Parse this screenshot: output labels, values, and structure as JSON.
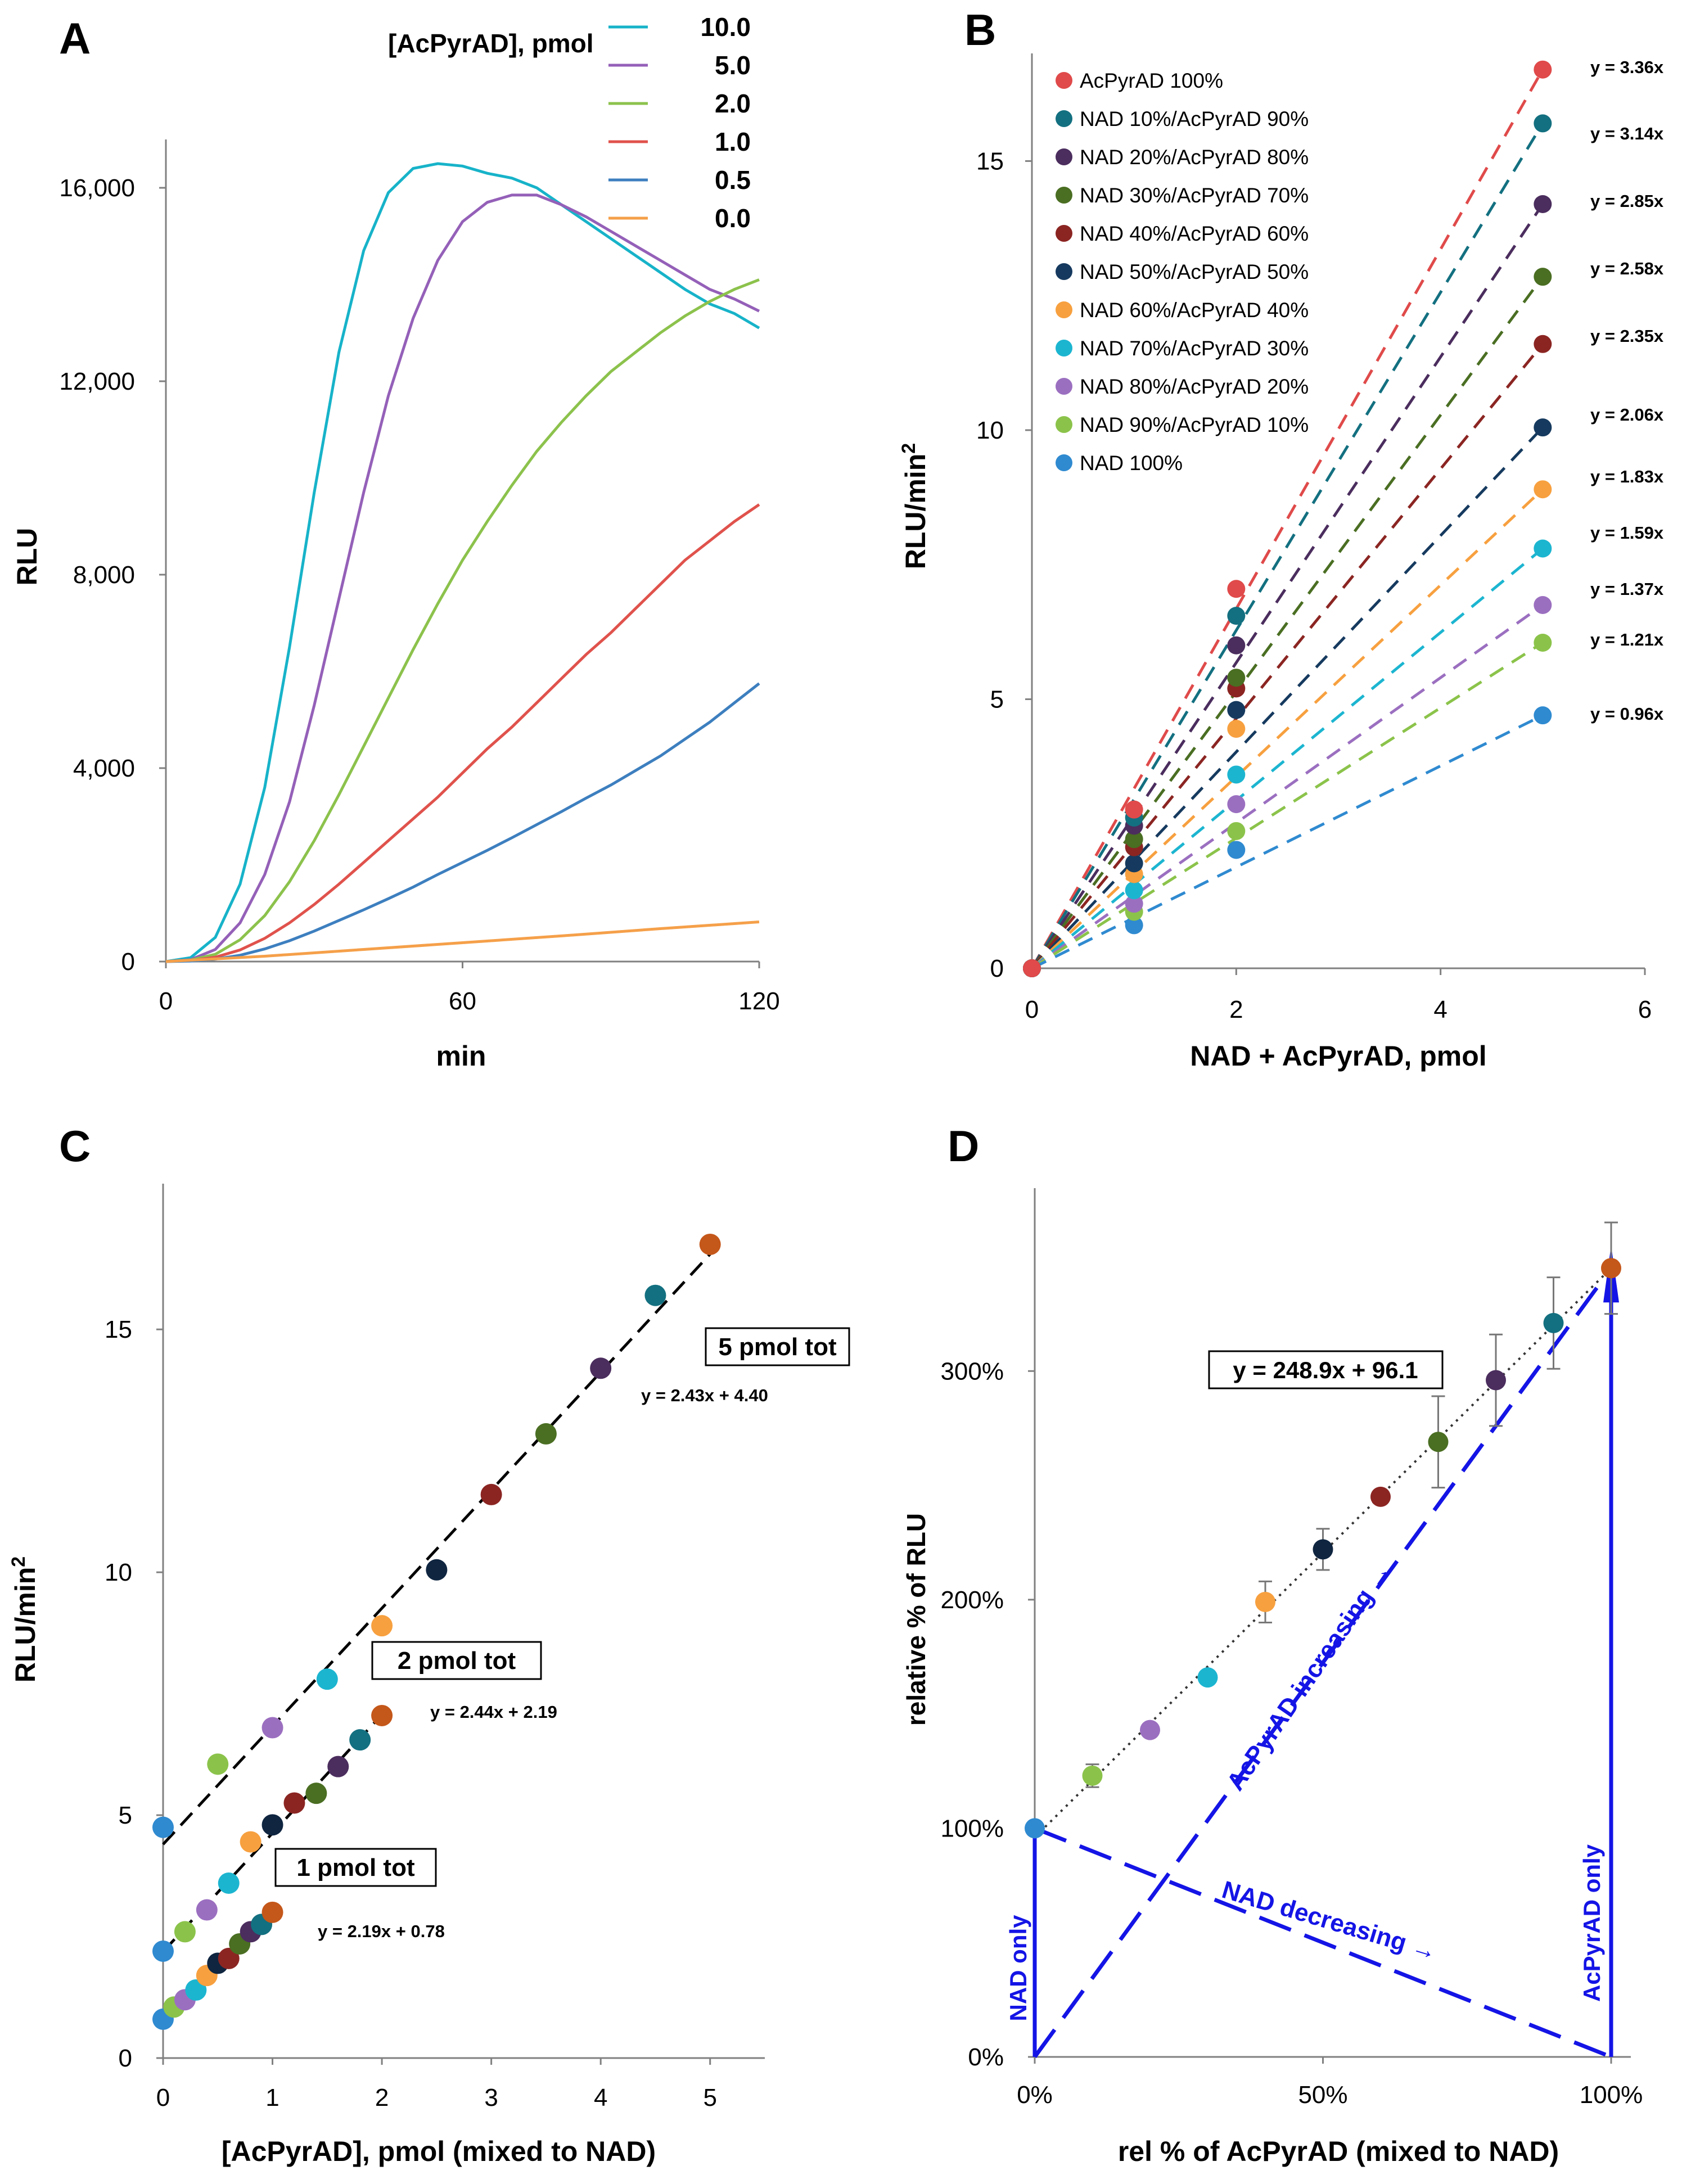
{
  "panels": {
    "A": "A",
    "B": "B",
    "C": "C",
    "D": "D"
  },
  "chart_data": [
    {
      "panel": "A",
      "type": "line",
      "xlabel": "min",
      "ylabel": "RLU",
      "xlim": [
        0,
        120
      ],
      "ylim": [
        0,
        17000
      ],
      "xticks": [
        0,
        60,
        120
      ],
      "xtick_labels": [
        "0",
        "60",
        "120"
      ],
      "yticks": [
        0,
        4000,
        8000,
        12000,
        16000
      ],
      "ytick_labels": [
        "0",
        "4,000",
        "8,000",
        "12,000",
        "16,000"
      ],
      "legend_title": "[AcPyrAD], pmol",
      "legend_position": "top-right",
      "series": [
        {
          "name": "10.0",
          "color": "#17b3c9",
          "x": [
            0,
            5,
            10,
            15,
            20,
            25,
            30,
            35,
            40,
            45,
            50,
            55,
            60,
            65,
            70,
            75,
            80,
            85,
            90,
            95,
            100,
            105,
            110,
            115,
            120
          ],
          "y": [
            0,
            80,
            500,
            1600,
            3600,
            6500,
            9700,
            12600,
            14700,
            15900,
            16400,
            16500,
            16450,
            16300,
            16200,
            16000,
            15650,
            15300,
            14950,
            14600,
            14250,
            13900,
            13600,
            13400,
            13100
          ]
        },
        {
          "name": "5.0",
          "color": "#9460b8",
          "x": [
            0,
            5,
            10,
            15,
            20,
            25,
            30,
            35,
            40,
            45,
            50,
            55,
            60,
            65,
            70,
            75,
            80,
            85,
            90,
            95,
            100,
            105,
            110,
            115,
            120
          ],
          "y": [
            0,
            40,
            250,
            800,
            1800,
            3300,
            5300,
            7500,
            9700,
            11700,
            13300,
            14500,
            15300,
            15700,
            15850,
            15850,
            15650,
            15400,
            15100,
            14800,
            14500,
            14200,
            13900,
            13700,
            13450
          ]
        },
        {
          "name": "2.0",
          "color": "#8cc24c",
          "x": [
            0,
            5,
            10,
            15,
            20,
            25,
            30,
            35,
            40,
            45,
            50,
            55,
            60,
            65,
            70,
            75,
            80,
            85,
            90,
            95,
            100,
            105,
            110,
            115,
            120
          ],
          "y": [
            0,
            30,
            150,
            450,
            950,
            1650,
            2500,
            3450,
            4450,
            5450,
            6450,
            7400,
            8300,
            9100,
            9850,
            10550,
            11150,
            11700,
            12200,
            12600,
            13000,
            13350,
            13650,
            13900,
            14100
          ]
        },
        {
          "name": "1.0",
          "color": "#e0524c",
          "x": [
            0,
            5,
            10,
            15,
            20,
            25,
            30,
            35,
            40,
            45,
            50,
            55,
            60,
            65,
            70,
            75,
            80,
            85,
            90,
            95,
            100,
            105,
            110,
            115,
            120
          ],
          "y": [
            0,
            20,
            90,
            240,
            480,
            800,
            1180,
            1600,
            2050,
            2500,
            2950,
            3400,
            3900,
            4400,
            4850,
            5350,
            5850,
            6350,
            6800,
            7300,
            7800,
            8300,
            8700,
            9100,
            9450
          ]
        },
        {
          "name": "0.5",
          "color": "#3d7fbf",
          "x": [
            0,
            5,
            10,
            15,
            20,
            25,
            30,
            35,
            40,
            45,
            50,
            55,
            60,
            65,
            70,
            75,
            80,
            85,
            90,
            95,
            100,
            105,
            110,
            115,
            120
          ],
          "y": [
            0,
            10,
            50,
            130,
            260,
            430,
            630,
            850,
            1070,
            1300,
            1540,
            1800,
            2050,
            2300,
            2560,
            2830,
            3100,
            3380,
            3650,
            3950,
            4250,
            4600,
            4950,
            5350,
            5750
          ]
        },
        {
          "name": "0.0",
          "color": "#f5a04a",
          "x": [
            0,
            20,
            40,
            60,
            80,
            100,
            120
          ],
          "y": [
            0,
            110,
            250,
            390,
            530,
            680,
            820
          ]
        }
      ]
    },
    {
      "panel": "B",
      "type": "scatter",
      "xlabel": "NAD + AcPyrAD, pmol",
      "ylabel": "RLU/min",
      "ylabel_sup": "2",
      "xlim": [
        0,
        6
      ],
      "ylim": [
        0,
        17
      ],
      "xticks": [
        0,
        2,
        4,
        6
      ],
      "yticks": [
        0,
        5,
        10,
        15
      ],
      "legend_position": "top-left",
      "x": [
        0,
        1,
        2,
        5
      ],
      "series": [
        {
          "name": "AcPyrAD 100%",
          "color": "#e04a4a",
          "slope": 3.36,
          "equation": "y = 3.36x",
          "values": [
            0,
            2.95,
            7.05,
            16.7
          ]
        },
        {
          "name": "NAD 10%/AcPyrAD 90%",
          "color": "#137080",
          "slope": 3.14,
          "equation": "y = 3.14x",
          "values": [
            0,
            2.8,
            6.55,
            15.7
          ]
        },
        {
          "name": "NAD 20%/AcPyrAD 80%",
          "color": "#4b2d5e",
          "slope": 2.85,
          "equation": "y = 2.85x",
          "values": [
            0,
            2.65,
            6.0,
            14.2
          ]
        },
        {
          "name": "NAD 30%/AcPyrAD 70%",
          "color": "#4a6e22",
          "slope": 2.58,
          "equation": "y = 2.58x",
          "values": [
            0,
            2.4,
            5.4,
            12.85
          ]
        },
        {
          "name": "NAD 40%/AcPyrAD 60%",
          "color": "#8b2522",
          "slope": 2.35,
          "equation": "y = 2.35x",
          "values": [
            0,
            2.25,
            5.2,
            11.6
          ]
        },
        {
          "name": "NAD 50%/AcPyrAD 50%",
          "color": "#163a5f",
          "slope": 2.06,
          "equation": "y = 2.06x",
          "values": [
            0,
            1.95,
            4.8,
            10.05
          ]
        },
        {
          "name": "NAD 60%/AcPyrAD 40%",
          "color": "#f7a03f",
          "slope": 1.83,
          "equation": "y = 1.83x",
          "values": [
            0,
            1.75,
            4.45,
            8.9
          ]
        },
        {
          "name": "NAD 70%/AcPyrAD 30%",
          "color": "#1cb5d0",
          "slope": 1.59,
          "equation": "y = 1.59x",
          "values": [
            0,
            1.45,
            3.6,
            7.8
          ]
        },
        {
          "name": "NAD 80%/AcPyrAD 20%",
          "color": "#9b6fc0",
          "slope": 1.37,
          "equation": "y = 1.37x",
          "values": [
            0,
            1.2,
            3.05,
            6.75
          ]
        },
        {
          "name": "NAD 90%/AcPyrAD 10%",
          "color": "#8bc34a",
          "slope": 1.21,
          "equation": "y = 1.21x",
          "values": [
            0,
            1.05,
            2.55,
            6.05
          ]
        },
        {
          "name": "NAD 100%",
          "color": "#2f8ad0",
          "slope": 0.96,
          "equation": "y = 0.96x",
          "values": [
            0,
            0.8,
            2.2,
            4.7
          ]
        }
      ]
    },
    {
      "panel": "C",
      "type": "scatter",
      "xlabel": "[AcPyrAD], pmol (mixed to NAD)",
      "ylabel": "RLU/min",
      "ylabel_sup": "2",
      "xlim": [
        0,
        5.5
      ],
      "ylim": [
        0,
        18
      ],
      "xticks": [
        0,
        1,
        2,
        3,
        4,
        5
      ],
      "yticks": [
        0,
        5,
        10,
        15
      ],
      "groups": [
        {
          "label": "5 pmol tot",
          "equation": "y = 2.43x + 4.40",
          "slope": 2.43,
          "intercept": 4.4,
          "line_x": [
            0,
            5
          ],
          "x": [
            0,
            0.5,
            1,
            1.5,
            2,
            2.5,
            3,
            3.5,
            4,
            4.5,
            5
          ],
          "y": [
            4.75,
            6.05,
            6.8,
            7.8,
            8.9,
            10.05,
            11.6,
            12.85,
            14.2,
            15.7,
            16.75
          ]
        },
        {
          "label": "2 pmol tot",
          "equation": "y = 2.44x + 2.19",
          "slope": 2.44,
          "intercept": 2.19,
          "line_x": [
            0,
            2
          ],
          "x": [
            0,
            0.2,
            0.4,
            0.6,
            0.8,
            1.0,
            1.2,
            1.4,
            1.6,
            1.8,
            2.0
          ],
          "y": [
            2.2,
            2.6,
            3.05,
            3.6,
            4.45,
            4.8,
            5.25,
            5.45,
            6.0,
            6.55,
            7.05
          ]
        },
        {
          "label": "1 pmol tot",
          "equation": "y = 2.19x + 0.78",
          "slope": 2.19,
          "intercept": 0.78,
          "line_x": [
            0,
            1
          ],
          "x": [
            0,
            0.1,
            0.2,
            0.3,
            0.4,
            0.5,
            0.6,
            0.7,
            0.8,
            0.9,
            1.0
          ],
          "y": [
            0.8,
            1.05,
            1.2,
            1.4,
            1.7,
            1.95,
            2.05,
            2.35,
            2.6,
            2.75,
            3.0
          ]
        }
      ],
      "point_colors": [
        "#2f8ad0",
        "#8bc34a",
        "#9b6fc0",
        "#1cb5d0",
        "#f7a03f",
        "#0f2540",
        "#8b2522",
        "#4a6e22",
        "#4b2d5e",
        "#137080",
        "#c4571a"
      ]
    },
    {
      "panel": "D",
      "type": "scatter",
      "xlabel": "rel % of AcPyrAD (mixed to NAD)",
      "ylabel": "relative % of RLU",
      "xlim": [
        0,
        100
      ],
      "ylim": [
        0,
        380
      ],
      "xticks": [
        0,
        50,
        100
      ],
      "xtick_labels": [
        "0%",
        "50%",
        "100%"
      ],
      "yticks": [
        0,
        100,
        200,
        300
      ],
      "ytick_labels": [
        "0%",
        "100%",
        "200%",
        "300%"
      ],
      "equation": "y = 248.9x + 96.1",
      "fit": {
        "slope": 248.9,
        "intercept": 96.1
      },
      "x": [
        0,
        10,
        20,
        30,
        40,
        50,
        60,
        70,
        80,
        90,
        100
      ],
      "y": [
        100,
        123,
        143,
        166,
        199,
        222,
        245,
        269,
        296,
        321,
        345
      ],
      "err": [
        0,
        5,
        0,
        0,
        9,
        9,
        0,
        20,
        20,
        20,
        20
      ],
      "colors": [
        "#2f8ad0",
        "#8bc34a",
        "#9b6fc0",
        "#1cb5d0",
        "#f7a03f",
        "#0f2540",
        "#8b2522",
        "#4a6e22",
        "#4b2d5e",
        "#137080",
        "#c4571a"
      ],
      "annotations": {
        "nad_only": "NAD only",
        "acpyrad_only": "AcPyrAD only",
        "nad_decreasing": "NAD decreasing →",
        "acpyrad_increasing": "AcPyrAD increasing →"
      },
      "annotation_color": "#1414e6"
    }
  ]
}
